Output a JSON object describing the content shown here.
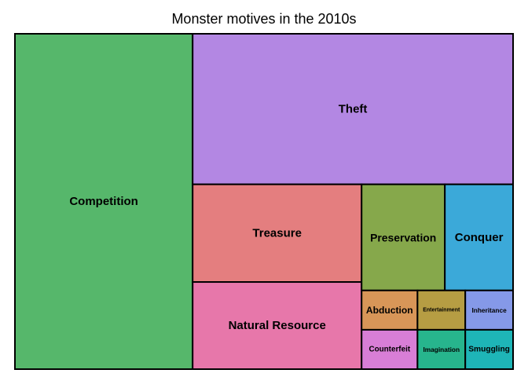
{
  "chart_data": {
    "type": "treemap",
    "title": "Monster motives in the 2010s",
    "tiles": [
      {
        "label": "Competition",
        "value": 168,
        "color": "#56b76b"
      },
      {
        "label": "Theft",
        "value": 136,
        "color": "#b387e3"
      },
      {
        "label": "Treasure",
        "value": 46.5,
        "color": "#e47e7f"
      },
      {
        "label": "Natural Resource",
        "value": 41.5,
        "color": "#e777aa"
      },
      {
        "label": "Preservation",
        "value": 24.9,
        "color": "#86a84b"
      },
      {
        "label": "Conquer",
        "value": 20.4,
        "color": "#3ba9d9"
      },
      {
        "label": "Abduction",
        "value": 6.2,
        "color": "#d89658"
      },
      {
        "label": "Counterfeit",
        "value": 6.2,
        "color": "#d87ed6"
      },
      {
        "label": "Entertainment",
        "value": 5.3,
        "color": "#b69d43"
      },
      {
        "label": "Imagination",
        "value": 5.3,
        "color": "#27b58d"
      },
      {
        "label": "Inheritance",
        "value": 5.3,
        "color": "#8599e8"
      },
      {
        "label": "Smuggling",
        "value": 5.3,
        "color": "#1eb5b7"
      }
    ]
  }
}
